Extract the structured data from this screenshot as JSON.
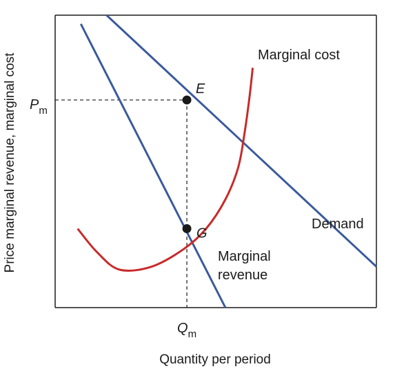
{
  "chart_data": {
    "type": "line",
    "xlabel": "Quantity per period",
    "ylabel": "Price marginal revenue, marginal cost",
    "x_tick_labels": [
      {
        "base": "Q",
        "sub": "m"
      }
    ],
    "y_tick_labels": [
      {
        "base": "P",
        "sub": "m"
      }
    ],
    "series": [
      {
        "name": "Demand",
        "color": "#3a5a9c",
        "points": [
          [
            0.16,
            1.0
          ],
          [
            1.0,
            0.14
          ]
        ]
      },
      {
        "name": "Marginal revenue",
        "color": "#3a5a9c",
        "points": [
          [
            0.08,
            0.97
          ],
          [
            0.53,
            0.0
          ]
        ]
      },
      {
        "name": "Marginal cost",
        "color": "#c92a2a",
        "points": [
          [
            0.07,
            0.27
          ],
          [
            0.13,
            0.19
          ],
          [
            0.2,
            0.13
          ],
          [
            0.3,
            0.14
          ],
          [
            0.4,
            0.2
          ],
          [
            0.47,
            0.27
          ],
          [
            0.53,
            0.37
          ],
          [
            0.57,
            0.48
          ],
          [
            0.59,
            0.6
          ],
          [
            0.605,
            0.72
          ],
          [
            0.615,
            0.82
          ]
        ]
      }
    ],
    "points": [
      {
        "label": "E",
        "x": 0.41,
        "y": 0.71
      },
      {
        "label": "G",
        "x": 0.41,
        "y": 0.27
      }
    ],
    "ylim": [
      0,
      1
    ],
    "xlim": [
      0,
      1
    ],
    "grid": false
  }
}
